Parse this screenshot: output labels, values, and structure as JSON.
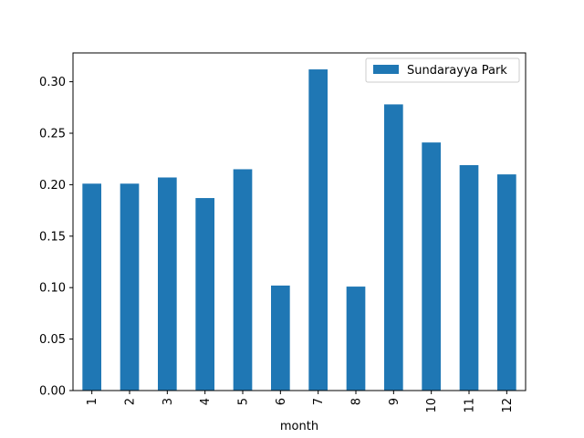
{
  "chart_data": {
    "type": "bar",
    "title": "",
    "xlabel": "month",
    "ylabel": "",
    "categories": [
      "1",
      "2",
      "3",
      "4",
      "5",
      "6",
      "7",
      "8",
      "9",
      "10",
      "11",
      "12"
    ],
    "series": [
      {
        "name": "Sundarayya Park",
        "color": "#1f77b4",
        "values": [
          0.201,
          0.201,
          0.207,
          0.187,
          0.215,
          0.102,
          0.312,
          0.101,
          0.278,
          0.241,
          0.219,
          0.21
        ]
      }
    ],
    "ylim": [
      0,
      0.328
    ],
    "yticks": [
      "0.00",
      "0.05",
      "0.10",
      "0.15",
      "0.20",
      "0.25",
      "0.30"
    ],
    "ytick_values": [
      0,
      0.05,
      0.1,
      0.15,
      0.2,
      0.25,
      0.3
    ],
    "grid": false,
    "legend_position": "top-right",
    "x_tick_rotation": "vertical"
  }
}
